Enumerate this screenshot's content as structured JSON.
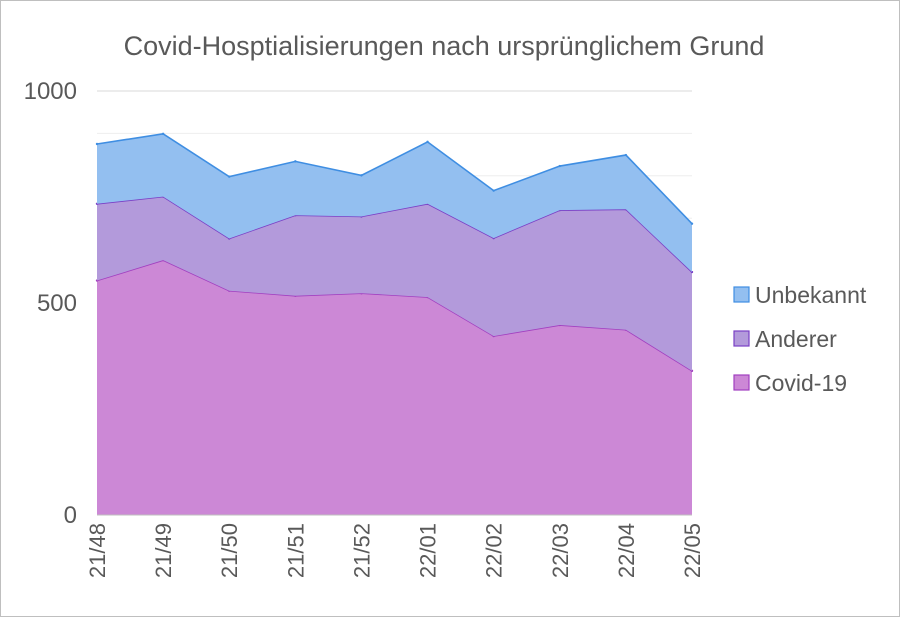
{
  "chart_data": {
    "type": "area",
    "stacked": true,
    "title": "Covid-Hosptialisierungen nach ursprünglichem Grund",
    "xlabel": "",
    "ylabel": "",
    "categories": [
      "21/48",
      "21/49",
      "21/50",
      "21/51",
      "21/52",
      "22/01",
      "22/02",
      "22/03",
      "22/04",
      "22/05"
    ],
    "ylim": [
      0,
      1000
    ],
    "yticks": [
      "0",
      "500",
      "1000"
    ],
    "grid": "horizontal",
    "legend_position": "right",
    "series": [
      {
        "name": "Covid-19",
        "color": "#cc88d6",
        "line": "#a23fc0",
        "values": [
          553,
          601,
          529,
          517,
          523,
          514,
          422,
          448,
          437,
          340
        ]
      },
      {
        "name": "Anderer",
        "color": "#b39adb",
        "line": "#7a3fc6",
        "values": [
          181,
          150,
          123,
          190,
          181,
          220,
          231,
          271,
          284,
          233
        ]
      },
      {
        "name": "Unbekannt",
        "color": "#93bff0",
        "line": "#3f8ee2",
        "values": [
          141,
          148,
          146,
          127,
          97,
          146,
          112,
          104,
          128,
          114
        ]
      }
    ]
  }
}
